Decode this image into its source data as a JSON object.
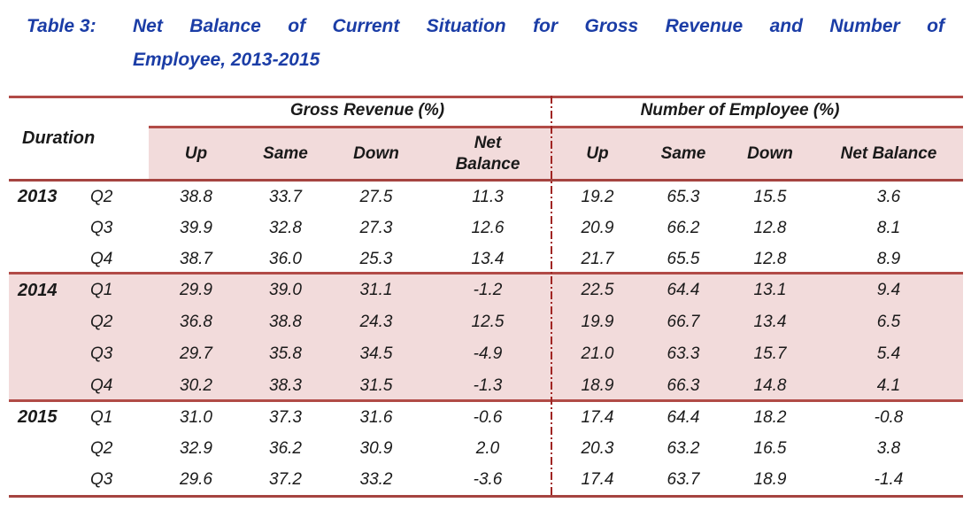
{
  "title": {
    "label": "Table 3:",
    "line1": "Net Balance of Current Situation for Gross Revenue and Number of",
    "line2": "Employee, 2013-2015"
  },
  "colors": {
    "title_blue": "#1b3da6",
    "rule_red": "#b14b47",
    "divider_red": "#a02523",
    "highlight_pink": "#f2dbdb"
  },
  "table": {
    "duration_header": "Duration",
    "groups": [
      {
        "label": "Gross Revenue (%)",
        "columns": [
          "Up",
          "Same",
          "Down",
          "Net Balance"
        ]
      },
      {
        "label": "Number of Employee (%)",
        "columns": [
          "Up",
          "Same",
          "Down",
          "Net Balance"
        ]
      }
    ],
    "rows": [
      {
        "year": "2013",
        "quarter": "Q2",
        "values": [
          "38.8",
          "33.7",
          "27.5",
          "11.3",
          "19.2",
          "65.3",
          "15.5",
          "3.6"
        ],
        "highlight": false
      },
      {
        "year": "",
        "quarter": "Q3",
        "values": [
          "39.9",
          "32.8",
          "27.3",
          "12.6",
          "20.9",
          "66.2",
          "12.8",
          "8.1"
        ],
        "highlight": false
      },
      {
        "year": "",
        "quarter": "Q4",
        "values": [
          "38.7",
          "36.0",
          "25.3",
          "13.4",
          "21.7",
          "65.5",
          "12.8",
          "8.9"
        ],
        "highlight": false
      },
      {
        "year": "2014",
        "quarter": "Q1",
        "values": [
          "29.9",
          "39.0",
          "31.1",
          "-1.2",
          "22.5",
          "64.4",
          "13.1",
          "9.4"
        ],
        "highlight": true
      },
      {
        "year": "",
        "quarter": "Q2",
        "values": [
          "36.8",
          "38.8",
          "24.3",
          "12.5",
          "19.9",
          "66.7",
          "13.4",
          "6.5"
        ],
        "highlight": true
      },
      {
        "year": "",
        "quarter": "Q3",
        "values": [
          "29.7",
          "35.8",
          "34.5",
          "-4.9",
          "21.0",
          "63.3",
          "15.7",
          "5.4"
        ],
        "highlight": true
      },
      {
        "year": "",
        "quarter": "Q4",
        "values": [
          "30.2",
          "38.3",
          "31.5",
          "-1.3",
          "18.9",
          "66.3",
          "14.8",
          "4.1"
        ],
        "highlight": true
      },
      {
        "year": "2015",
        "quarter": "Q1",
        "values": [
          "31.0",
          "37.3",
          "31.6",
          "-0.6",
          "17.4",
          "64.4",
          "18.2",
          "-0.8"
        ],
        "highlight": false
      },
      {
        "year": "",
        "quarter": "Q2",
        "values": [
          "32.9",
          "36.2",
          "30.9",
          "2.0",
          "20.3",
          "63.2",
          "16.5",
          "3.8"
        ],
        "highlight": false
      },
      {
        "year": "",
        "quarter": "Q3",
        "values": [
          "29.6",
          "37.2",
          "33.2",
          "-3.6",
          "17.4",
          "63.7",
          "18.9",
          "-1.4"
        ],
        "highlight": false
      }
    ]
  }
}
